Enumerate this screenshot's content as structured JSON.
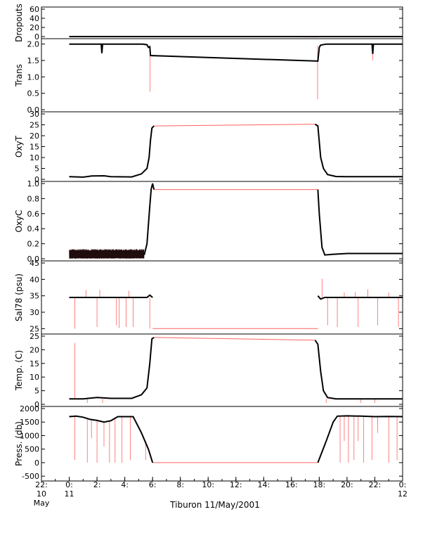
{
  "chart_data": {
    "type": "line",
    "title": "",
    "xlabel": "Tiburon 11/May/2001",
    "x_ticks": [
      {
        "hour": 22,
        "lines": [
          "22:",
          "10",
          "May"
        ]
      },
      {
        "hour": 24,
        "lines": [
          "0:",
          "11"
        ]
      },
      {
        "hour": 26,
        "lines": [
          "2:"
        ]
      },
      {
        "hour": 28,
        "lines": [
          "4:"
        ]
      },
      {
        "hour": 30,
        "lines": [
          "6:"
        ]
      },
      {
        "hour": 32,
        "lines": [
          "8:"
        ]
      },
      {
        "hour": 34,
        "lines": [
          "10:"
        ]
      },
      {
        "hour": 36,
        "lines": [
          "12:"
        ]
      },
      {
        "hour": 38,
        "lines": [
          "14:"
        ]
      },
      {
        "hour": 40,
        "lines": [
          "16:"
        ]
      },
      {
        "hour": 42,
        "lines": [
          "18:"
        ]
      },
      {
        "hour": 44,
        "lines": [
          "20:"
        ]
      },
      {
        "hour": 46,
        "lines": [
          "22:"
        ]
      },
      {
        "hour": 48,
        "lines": [
          "0:",
          "12"
        ]
      }
    ],
    "xlim": [
      22,
      48
    ],
    "series_colors": {
      "primary": "#000000",
      "secondary": "#ff6060"
    },
    "panels": [
      {
        "id": "dropouts",
        "ylabel": "Dropouts",
        "ylim": [
          0,
          60
        ],
        "yticks": [
          0,
          20,
          40,
          60
        ],
        "ytick_labels": [
          "0",
          "20",
          "40",
          "60"
        ],
        "primary": [
          [
            24,
            0
          ],
          [
            29.8,
            0
          ],
          [
            30.2,
            0
          ],
          [
            41.9,
            0
          ],
          [
            42.1,
            0
          ],
          [
            48,
            0
          ]
        ],
        "secondary": [
          [
            29.8,
            0
          ],
          [
            41.9,
            -1
          ]
        ],
        "spikes": []
      },
      {
        "id": "trans",
        "ylabel": "Trans",
        "ylim": [
          0,
          2.1
        ],
        "yticks": [
          0,
          0.5,
          1,
          1.5,
          2
        ],
        "ytick_labels": [
          "0.0",
          "0.5",
          "1.0",
          "1.5",
          "2.0"
        ],
        "primary": [
          [
            24,
            2.0
          ],
          [
            26.3,
            2.0
          ],
          [
            26.35,
            1.72
          ],
          [
            26.4,
            2.0
          ],
          [
            29.3,
            2.0
          ],
          [
            29.6,
            1.98
          ],
          [
            29.7,
            1.9
          ],
          [
            29.8,
            1.92
          ],
          [
            29.85,
            1.65
          ],
          [
            41.9,
            1.48
          ],
          [
            42.0,
            1.9
          ],
          [
            42.1,
            1.97
          ],
          [
            42.5,
            2.0
          ],
          [
            45.8,
            2.0
          ],
          [
            45.85,
            1.7
          ],
          [
            45.9,
            2.0
          ],
          [
            48,
            2.0
          ]
        ],
        "secondary": [
          [
            29.82,
            1.65
          ],
          [
            41.9,
            1.48
          ]
        ],
        "spikes": [
          [
            29.82,
            1.95,
            0.55
          ],
          [
            41.88,
            1.95,
            0.32
          ],
          [
            45.85,
            2.0,
            1.5
          ]
        ]
      },
      {
        "id": "oxyt",
        "ylabel": "OxyT",
        "ylim": [
          0,
          30
        ],
        "yticks": [
          0,
          5,
          10,
          15,
          20,
          25,
          30
        ],
        "ytick_labels": [
          "0",
          "5",
          "10",
          "15",
          "20",
          "25",
          "30"
        ],
        "primary": [
          [
            24,
            1.2
          ],
          [
            25,
            1.0
          ],
          [
            25.6,
            1.5
          ],
          [
            26.5,
            1.6
          ],
          [
            27,
            1.2
          ],
          [
            28.5,
            1.1
          ],
          [
            29.2,
            2.5
          ],
          [
            29.6,
            5
          ],
          [
            29.75,
            10
          ],
          [
            29.85,
            18
          ],
          [
            29.95,
            23.5
          ],
          [
            30.1,
            24.5
          ],
          [
            41.7,
            25.3
          ],
          [
            41.9,
            24.5
          ],
          [
            42.1,
            10
          ],
          [
            42.3,
            5
          ],
          [
            42.6,
            2.2
          ],
          [
            43.2,
            1.3
          ],
          [
            44,
            1.2
          ],
          [
            48,
            1.2
          ]
        ],
        "secondary": [
          [
            30.1,
            24.5
          ],
          [
            41.7,
            25.3
          ]
        ],
        "spikes": []
      },
      {
        "id": "oxyc",
        "ylabel": "OxyC",
        "ylim": [
          0,
          1.0
        ],
        "yticks": [
          0,
          0.2,
          0.4,
          0.6,
          0.8,
          1.0
        ],
        "ytick_labels": [
          "0.0",
          "0.2",
          "0.4",
          "0.6",
          "0.8",
          "1.0"
        ],
        "primary": [
          [
            29.4,
            0.05
          ],
          [
            29.6,
            0.2
          ],
          [
            29.8,
            0.7
          ],
          [
            29.9,
            0.93
          ],
          [
            30.0,
            1.0
          ],
          [
            30.1,
            0.92
          ],
          [
            41.9,
            0.92
          ],
          [
            42.0,
            0.6
          ],
          [
            42.2,
            0.15
          ],
          [
            42.4,
            0.05
          ],
          [
            43.0,
            0.06
          ],
          [
            44,
            0.07
          ],
          [
            48,
            0.07
          ]
        ],
        "secondary": [
          [
            30.1,
            0.92
          ],
          [
            41.9,
            0.92
          ]
        ],
        "noise_band": {
          "x_start": 24,
          "x_end": 29.4,
          "low": 0.0,
          "high": 0.13
        },
        "spikes": []
      },
      {
        "id": "sal78",
        "ylabel": "Sal78 (psu)",
        "ylim": [
          24,
          45
        ],
        "yticks": [
          25,
          30,
          35,
          40,
          45
        ],
        "ytick_labels": [
          "25",
          "30",
          "35",
          "40",
          "45"
        ],
        "primary": [
          [
            24,
            34.5
          ],
          [
            29.6,
            34.5
          ],
          [
            29.8,
            35.2
          ],
          [
            30.0,
            34.5
          ],
          [
            41.9,
            35.0
          ],
          [
            42.1,
            34.0
          ],
          [
            42.4,
            34.5
          ],
          [
            48,
            34.5
          ]
        ],
        "secondary": [
          [
            30.0,
            25
          ],
          [
            41.9,
            25
          ]
        ],
        "spikes": [
          [
            24.4,
            34.5,
            25
          ],
          [
            25.2,
            34.5,
            36.8
          ],
          [
            26.0,
            34.5,
            25.5
          ],
          [
            26.2,
            34.5,
            36.8
          ],
          [
            27.4,
            34.5,
            26
          ],
          [
            27.6,
            34.5,
            25.2
          ],
          [
            28.1,
            34.5,
            25.5
          ],
          [
            28.3,
            34.5,
            36.5
          ],
          [
            28.6,
            34.5,
            25.5
          ],
          [
            29.8,
            34.5,
            25
          ],
          [
            42.2,
            34.5,
            40.2
          ],
          [
            42.6,
            34.5,
            26
          ],
          [
            43.3,
            34.5,
            25.5
          ],
          [
            43.8,
            34.5,
            36
          ],
          [
            44.6,
            34.5,
            36.2
          ],
          [
            44.8,
            34.5,
            25.5
          ],
          [
            45.5,
            34.5,
            37
          ],
          [
            46.2,
            34.5,
            26
          ],
          [
            47.0,
            34.5,
            36
          ],
          [
            47.7,
            34.5,
            25.5
          ]
        ]
      },
      {
        "id": "temp",
        "ylabel": "Temp. (C)",
        "ylim": [
          0,
          25
        ],
        "yticks": [
          0,
          5,
          10,
          15,
          20,
          25
        ],
        "ytick_labels": [
          "0",
          "5",
          "10",
          "15",
          "20",
          "25"
        ],
        "primary": [
          [
            24,
            2.0
          ],
          [
            25.0,
            2.0
          ],
          [
            26.0,
            2.5
          ],
          [
            27,
            2.2
          ],
          [
            28.5,
            2.2
          ],
          [
            29.2,
            3.5
          ],
          [
            29.6,
            6
          ],
          [
            29.8,
            15
          ],
          [
            29.95,
            24
          ],
          [
            30.1,
            24.5
          ],
          [
            41.7,
            23.5
          ],
          [
            41.9,
            22
          ],
          [
            42.1,
            12
          ],
          [
            42.3,
            5
          ],
          [
            42.6,
            2.5
          ],
          [
            43.2,
            2.0
          ],
          [
            48,
            2.0
          ]
        ],
        "secondary": [
          [
            30.1,
            24.5
          ],
          [
            41.7,
            23.5
          ]
        ],
        "spikes": [
          [
            24.4,
            2.0,
            22.5
          ],
          [
            25.3,
            2.0,
            0.5
          ],
          [
            26.4,
            2.0,
            0.5
          ],
          [
            42.5,
            2.0,
            0.5
          ],
          [
            45.0,
            2.0,
            0.5
          ],
          [
            46.0,
            2.0,
            0.5
          ]
        ]
      },
      {
        "id": "press",
        "ylabel": "Press. (db)",
        "ylim": [
          -600,
          2000
        ],
        "yticks": [
          -500,
          0,
          500,
          1000,
          1500,
          2000
        ],
        "ytick_labels": [
          "-500",
          "0",
          "500",
          "1000",
          "1500",
          "2000"
        ],
        "primary": [
          [
            24,
            1700
          ],
          [
            24.5,
            1720
          ],
          [
            25,
            1680
          ],
          [
            25.5,
            1600
          ],
          [
            26,
            1560
          ],
          [
            26.5,
            1500
          ],
          [
            27,
            1550
          ],
          [
            27.5,
            1700
          ],
          [
            28,
            1700
          ],
          [
            28.6,
            1700
          ],
          [
            29.2,
            1100
          ],
          [
            29.7,
            500
          ],
          [
            30.0,
            0
          ],
          [
            41.9,
            0
          ],
          [
            42.5,
            800
          ],
          [
            43.0,
            1500
          ],
          [
            43.3,
            1720
          ],
          [
            44,
            1730
          ],
          [
            45,
            1720
          ],
          [
            46,
            1700
          ],
          [
            47,
            1710
          ],
          [
            48,
            1700
          ]
        ],
        "secondary": [
          [
            30.0,
            0
          ],
          [
            41.9,
            0
          ]
        ],
        "spikes": [
          [
            24.4,
            1700,
            100
          ],
          [
            25.3,
            1650,
            0
          ],
          [
            25.6,
            1600,
            900
          ],
          [
            26.0,
            1550,
            0
          ],
          [
            26.5,
            1500,
            600
          ],
          [
            26.9,
            1520,
            0
          ],
          [
            27.3,
            1600,
            0
          ],
          [
            27.8,
            1700,
            0
          ],
          [
            28.4,
            1700,
            100
          ],
          [
            29.5,
            800,
            100
          ],
          [
            43.5,
            1720,
            0
          ],
          [
            43.8,
            1720,
            800
          ],
          [
            44.1,
            1720,
            0
          ],
          [
            44.5,
            1720,
            100
          ],
          [
            44.8,
            1720,
            800
          ],
          [
            45.2,
            1720,
            0
          ],
          [
            45.8,
            1710,
            100
          ],
          [
            46.2,
            1700,
            1100
          ],
          [
            47.0,
            1700,
            0
          ],
          [
            47.6,
            1700,
            100
          ]
        ]
      }
    ]
  }
}
